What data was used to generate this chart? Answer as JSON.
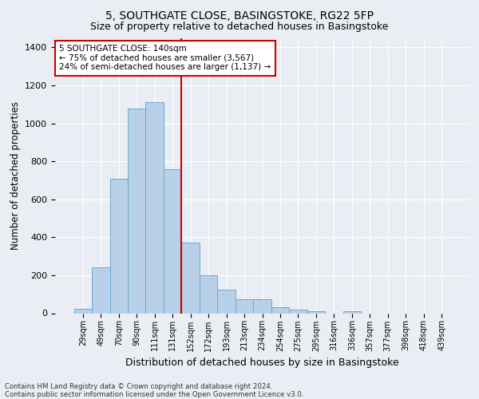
{
  "title1": "5, SOUTHGATE CLOSE, BASINGSTOKE, RG22 5FP",
  "title2": "Size of property relative to detached houses in Basingstoke",
  "xlabel": "Distribution of detached houses by size in Basingstoke",
  "ylabel": "Number of detached properties",
  "footnote1": "Contains HM Land Registry data © Crown copyright and database right 2024.",
  "footnote2": "Contains public sector information licensed under the Open Government Licence v3.0.",
  "categories": [
    "29sqm",
    "49sqm",
    "70sqm",
    "90sqm",
    "111sqm",
    "131sqm",
    "152sqm",
    "172sqm",
    "193sqm",
    "213sqm",
    "234sqm",
    "254sqm",
    "275sqm",
    "295sqm",
    "316sqm",
    "336sqm",
    "357sqm",
    "377sqm",
    "398sqm",
    "418sqm",
    "439sqm"
  ],
  "values": [
    25,
    240,
    710,
    1080,
    1110,
    760,
    370,
    200,
    125,
    75,
    75,
    30,
    20,
    10,
    0,
    10,
    0,
    0,
    0,
    0,
    0
  ],
  "bar_color": "#b8d0e8",
  "bar_edge_color": "#6aaad4",
  "vline_x": 5.5,
  "vline_color": "#cc0000",
  "annotation_text": "5 SOUTHGATE CLOSE: 140sqm\n← 75% of detached houses are smaller (3,567)\n24% of semi-detached houses are larger (1,137) →",
  "annotation_box_color": "#ffffff",
  "annotation_border_color": "#cc0000",
  "ylim": [
    0,
    1450
  ],
  "yticks": [
    0,
    200,
    400,
    600,
    800,
    1000,
    1200,
    1400
  ],
  "background_color": "#eaeef4",
  "plot_bg_color": "#eaeef4",
  "title1_fontsize": 10,
  "title2_fontsize": 9,
  "xlabel_fontsize": 9,
  "ylabel_fontsize": 8.5,
  "annot_fontsize": 7.5
}
